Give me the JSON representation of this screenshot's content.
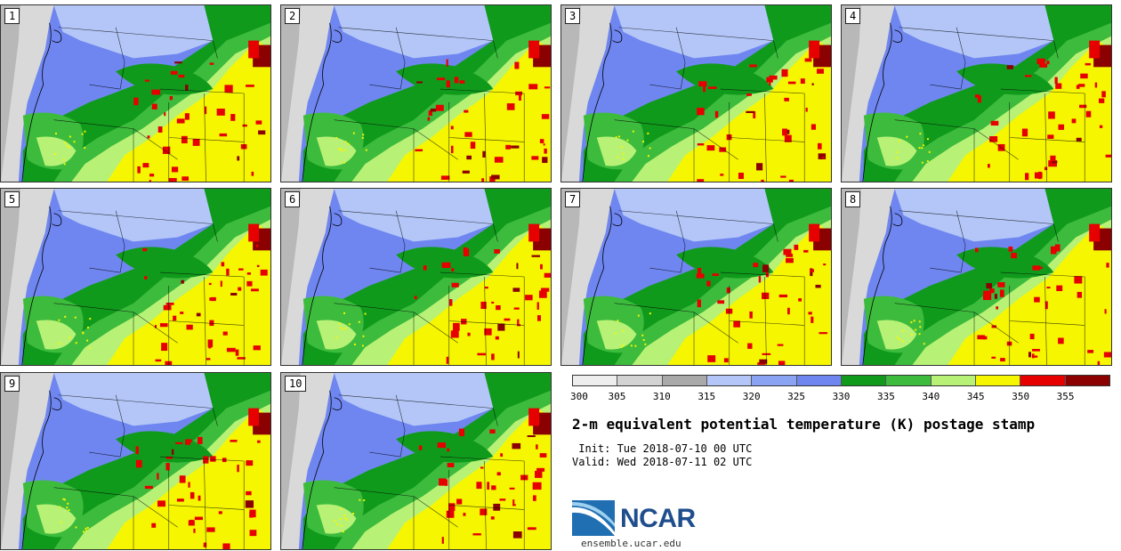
{
  "panels": [
    {
      "label": "1"
    },
    {
      "label": "2"
    },
    {
      "label": "3"
    },
    {
      "label": "4"
    },
    {
      "label": "5"
    },
    {
      "label": "6"
    },
    {
      "label": "7"
    },
    {
      "label": "8"
    },
    {
      "label": "9"
    },
    {
      "label": "10"
    }
  ],
  "colorbar": {
    "ticks": [
      "300",
      "305",
      "310",
      "315",
      "320",
      "325",
      "330",
      "335",
      "340",
      "345",
      "350",
      "355"
    ],
    "colors": [
      "#eeeeee",
      "#d3d3d3",
      "#a9a9a9",
      "#b3c6f7",
      "#8aa3f3",
      "#6f86f0",
      "#109a1c",
      "#3dbb3d",
      "#b7f276",
      "#f6f600",
      "#e60000",
      "#8b0000"
    ]
  },
  "title": "2-m equivalent potential temperature (K) postage stamp",
  "init": " Init: Tue 2018-07-10 00 UTC",
  "valid": "Valid: Wed 2018-07-11 02 UTC",
  "logo": {
    "name": "NCAR",
    "url": "ensemble.ucar.edu"
  },
  "map_colors": {
    "ocean": "#d9d9d9",
    "ocean_dark": "#a9a9a9",
    "cool_light": "#b3c6f7",
    "cool": "#8aa3f3",
    "cool_dark": "#6f86f0",
    "green_dark": "#109a1c",
    "green": "#3dbb3d",
    "green_light": "#b7f276",
    "yellow": "#f6f600",
    "red": "#e60000",
    "dark_red": "#8b0000"
  }
}
